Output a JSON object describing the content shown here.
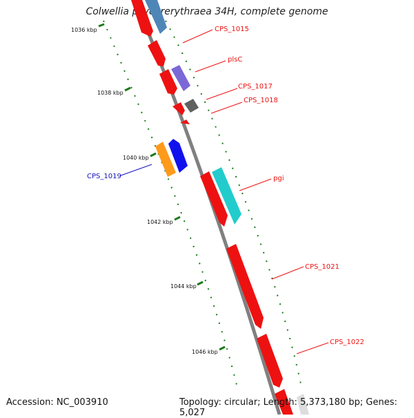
{
  "title": "Colwellia psychrerythraea 34H, complete genome",
  "footer": {
    "accession": "Accession: NC_003910",
    "stats": "Topology: circular; Length: 5,373,180 bp; Genes: 5,027"
  },
  "ruler": [
    {
      "label": "1036 kbp"
    },
    {
      "label": "1038 kbp"
    },
    {
      "label": "1040 kbp"
    },
    {
      "label": "1042 kbp"
    },
    {
      "label": "1044 kbp"
    },
    {
      "label": "1046 kbp"
    }
  ],
  "genes": [
    {
      "name": "CPS_1015",
      "color": "#ee1111"
    },
    {
      "name": "plsC",
      "color": "#ee1111"
    },
    {
      "name": "CPS_1017",
      "color": "#ee1111"
    },
    {
      "name": "CPS_1018",
      "color": "#ee1111"
    },
    {
      "name": "CPS_1019",
      "color": "#1111bb"
    },
    {
      "name": "pgi",
      "color": "#ee1111"
    },
    {
      "name": "CPS_1021",
      "color": "#ee1111"
    },
    {
      "name": "CPS_1022",
      "color": "#ee1111"
    }
  ],
  "colors": {
    "backbone": "#808080",
    "tick": "#1a7a1a",
    "forward_gene": "#ee1111",
    "reverse_gene": "#1111ee",
    "steelblue_gene": "#4f86b8",
    "purple_gene": "#7b68d6",
    "gray_gene": "#606060",
    "orange_gene": "#ff9a1a",
    "cyan_gene": "#22cccc"
  }
}
